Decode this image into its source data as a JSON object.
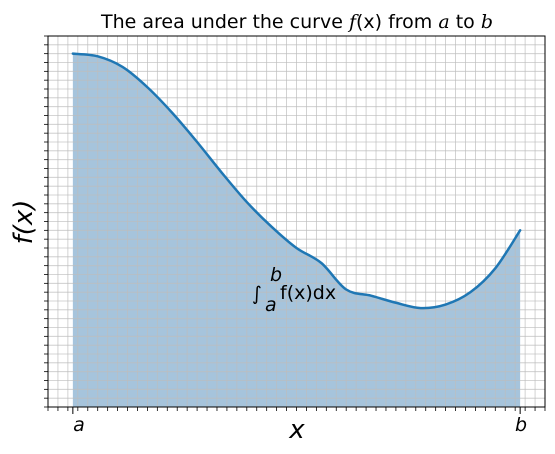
{
  "chart_data": {
    "type": "area",
    "title_plain": "The area under the curve ",
    "title_math_1": "f",
    "title_math_2": "(x)",
    "title_mid": " from ",
    "title_a": "a",
    "title_to": " to ",
    "title_b": "b",
    "xlabel": "x",
    "ylabel": "f(x)",
    "xticks": [
      {
        "x": 0.5,
        "label": "a"
      },
      {
        "x": 9.5,
        "label": "b"
      }
    ],
    "annotation": {
      "integral_sign": "∫",
      "lower": "a",
      "upper": "b",
      "body": "f(x)dx"
    },
    "xlim": [
      0.0,
      10.0
    ],
    "ylim": [
      0.0,
      4.2
    ],
    "grid": true,
    "minor_grid": true,
    "x": [
      0.5,
      1.0,
      1.5,
      2.0,
      2.5,
      3.0,
      3.5,
      4.0,
      4.5,
      5.0,
      5.5,
      6.0,
      6.5,
      7.0,
      7.5,
      8.0,
      8.5,
      9.0,
      9.5
    ],
    "y": [
      4.0,
      3.97,
      3.85,
      3.62,
      3.33,
      3.0,
      2.65,
      2.32,
      2.04,
      1.8,
      1.63,
      1.33,
      1.26,
      1.18,
      1.12,
      1.16,
      1.3,
      1.57,
      2.0
    ],
    "fill_range": [
      0.5,
      9.5
    ],
    "colors": {
      "line": "#1f77b4",
      "fill": "#a6c4dc",
      "grid_major": "#c98f8f",
      "grid_minor": "#bdbdbd"
    }
  }
}
